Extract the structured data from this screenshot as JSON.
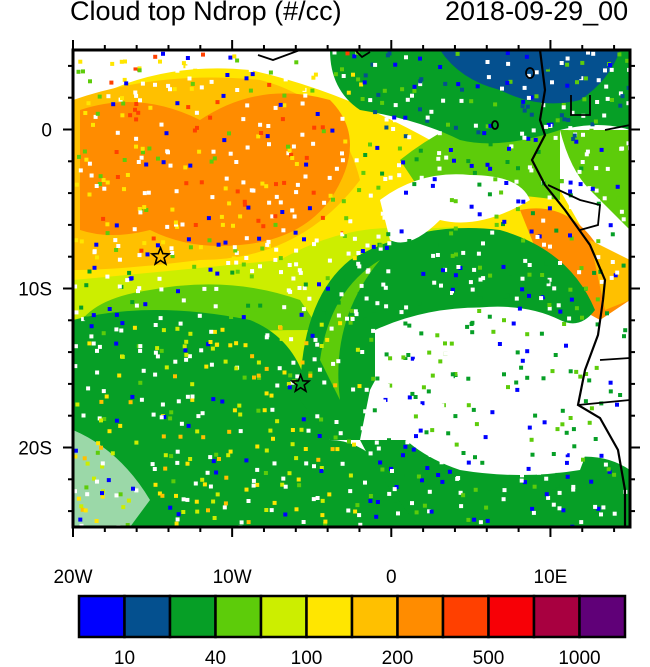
{
  "title_left": "Cloud top Ndrop (#/cc)",
  "title_right": "2018-09-29_00",
  "map": {
    "lon_range": [
      -20,
      15
    ],
    "lat_range": [
      -25,
      5
    ],
    "x_ticks": [
      {
        "lon": -20,
        "label": "20W"
      },
      {
        "lon": -10,
        "label": "10W"
      },
      {
        "lon": 0,
        "label": "0"
      },
      {
        "lon": 10,
        "label": "10E"
      }
    ],
    "y_ticks": [
      {
        "lat": 0,
        "label": "0"
      },
      {
        "lat": -10,
        "label": "10S"
      },
      {
        "lat": -20,
        "label": "20S"
      }
    ],
    "markers": [
      {
        "type": "star",
        "lon": -14.5,
        "lat": -8
      },
      {
        "type": "star",
        "lon": -5.7,
        "lat": -16
      }
    ]
  },
  "colorbar": {
    "colors": [
      "#0000ff",
      "#04508f",
      "#069f26",
      "#5dcc0a",
      "#ccee00",
      "#ffe600",
      "#ffc000",
      "#ff8c00",
      "#ff4000",
      "#f70006",
      "#a80040",
      "#600078"
    ],
    "labels": [
      {
        "after_box": 1,
        "text": "10"
      },
      {
        "after_box": 3,
        "text": "40"
      },
      {
        "after_box": 5,
        "text": "100"
      },
      {
        "after_box": 7,
        "text": "200"
      },
      {
        "after_box": 9,
        "text": "500"
      },
      {
        "after_box": 11,
        "text": "1000"
      }
    ]
  }
}
